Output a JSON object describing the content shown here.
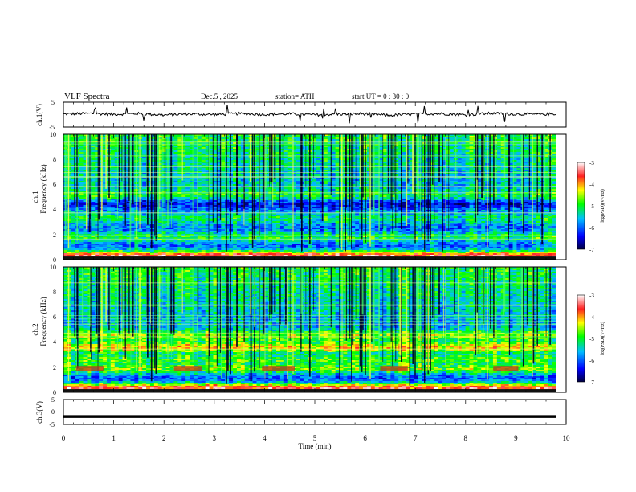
{
  "header": {
    "title": "VLF  Spectra",
    "date": "Dec.5  , 2025",
    "station": "station= ATH",
    "start": "start  UT  =   0  : 30 : 0"
  },
  "panels": {
    "ch1_wave": {
      "ylabel": "ch.1(V)",
      "ylim": [
        -5,
        5
      ],
      "ticks": [
        "5",
        "-5"
      ]
    },
    "ch1_spec": {
      "ylabel1": "ch.1",
      "ylabel2": "Frequency  (kHz)",
      "ylim": [
        0,
        10
      ],
      "ticks": [
        "10",
        "8",
        "6",
        "4",
        "2",
        "0"
      ]
    },
    "ch2_spec": {
      "ylabel1": "ch.2",
      "ylabel2": "Frequency  (kHz)",
      "ylim": [
        0,
        10
      ],
      "ticks": [
        "10",
        "8",
        "6",
        "4",
        "2",
        "0"
      ]
    },
    "ch3_wave": {
      "ylabel": "ch.3(V)",
      "ylim": [
        -5,
        5
      ],
      "ticks": [
        "5",
        "0",
        "-5"
      ]
    }
  },
  "colorbar": {
    "label": "log(PSD)(V²/Hz)",
    "ticks": [
      "-3",
      "-4",
      "-5",
      "-6",
      "-7"
    ],
    "range": [
      -7,
      -3
    ],
    "colors": [
      "#ffffff",
      "#ff2020",
      "#ffff00",
      "#00ff00",
      "#00c0ff",
      "#0000ff",
      "#000040"
    ]
  },
  "xaxis": {
    "label": "Time  (min)",
    "ticks": [
      "0",
      "1",
      "2",
      "3",
      "4",
      "5",
      "6",
      "7",
      "8",
      "9",
      "10"
    ],
    "range": [
      0,
      10
    ],
    "data_end": 9.8
  },
  "chart_data": [
    {
      "type": "line",
      "ylabel": "ch.1(V)",
      "ylim": [
        -5,
        5
      ],
      "xlim": [
        0,
        10
      ],
      "x": [
        0,
        0.5,
        1,
        1.5,
        2,
        2.5,
        3,
        3.5,
        4,
        4.5,
        5,
        5.5,
        6,
        6.5,
        7,
        7.5,
        8,
        8.5,
        9,
        9.5,
        9.8
      ],
      "series": [
        {
          "values": [
            0.2,
            0.5,
            0.1,
            0.4,
            -0.2,
            0.3,
            0.0,
            0.4,
            0.1,
            0.3,
            -0.1,
            0.2,
            0.3,
            -0.3,
            0.2,
            0.4,
            -0.1,
            0.5,
            0.2,
            0.1,
            0.3
          ]
        }
      ]
    },
    {
      "type": "heatmap",
      "ylabel": "Frequency  (kHz)",
      "ylim": [
        0,
        10
      ],
      "xlim": [
        0,
        10
      ],
      "colorscale_range": [
        -7,
        -3
      ],
      "band_centers_khz": [
        0.3,
        1.8,
        3.3,
        4.5,
        5.2
      ],
      "band_levels": [
        -3.5,
        -5.0,
        -5.2,
        -6.4,
        -5.0
      ]
    },
    {
      "type": "heatmap",
      "ylabel": "Frequency  (kHz)",
      "ylim": [
        0,
        10
      ],
      "xlim": [
        0,
        10
      ],
      "colorscale_range": [
        -7,
        -3
      ],
      "band_centers_khz": [
        0.3,
        1.9,
        2.6,
        3.6,
        4.5
      ],
      "band_levels": [
        -3.5,
        -4.6,
        -4.8,
        -4.2,
        -4.5
      ]
    },
    {
      "type": "line",
      "ylabel": "ch.3(V)",
      "ylim": [
        -5,
        5
      ],
      "xlim": [
        0,
        10
      ],
      "x": [
        0,
        9.8
      ],
      "series": [
        {
          "values": [
            -1.8,
            -1.8
          ]
        }
      ]
    }
  ]
}
